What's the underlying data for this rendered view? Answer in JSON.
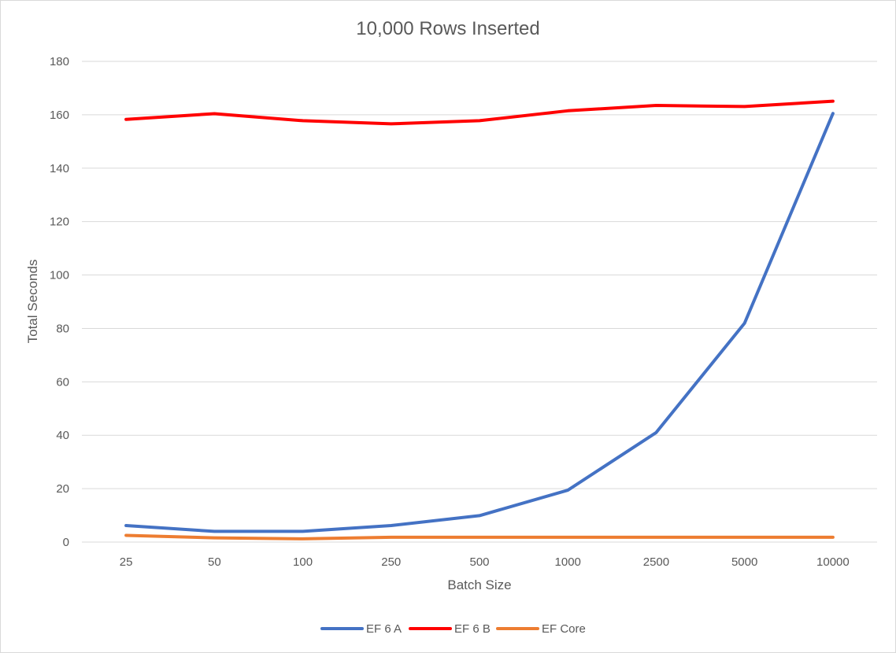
{
  "chart_data": {
    "type": "line",
    "title": "10,000 Rows Inserted",
    "xlabel": "Batch Size",
    "ylabel": "Total Seconds",
    "categories": [
      "25",
      "50",
      "100",
      "250",
      "500",
      "1000",
      "2500",
      "5000",
      "10000"
    ],
    "ylim": [
      0,
      180
    ],
    "yticks": [
      0,
      20,
      40,
      60,
      80,
      100,
      120,
      140,
      160,
      180
    ],
    "grid": true,
    "legend": "bottom",
    "series": [
      {
        "name": "EF 6 A",
        "color": "#4472C4",
        "values": [
          6.2,
          4,
          4,
          6.2,
          9.9,
          19.4,
          41,
          82,
          160.5
        ]
      },
      {
        "name": "EF 6 B",
        "color": "#FF0000",
        "values": [
          158.3,
          160.4,
          157.8,
          156.6,
          157.8,
          161.5,
          163.5,
          163.1,
          165.1
        ]
      },
      {
        "name": "EF Core",
        "color": "#ED7D31",
        "values": [
          2.5,
          1.6,
          1.2,
          1.8,
          1.8,
          1.8,
          1.8,
          1.8,
          1.8
        ]
      }
    ]
  }
}
